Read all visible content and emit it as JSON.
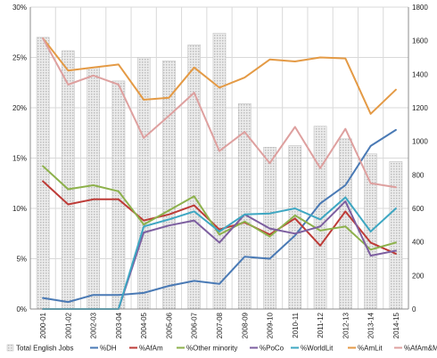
{
  "chart_data": {
    "type": "bar+line",
    "title": "",
    "categories": [
      "2000-01",
      "2001-02",
      "2002-03",
      "2003-04",
      "2004-05",
      "2005-06",
      "2006-07",
      "2007-08",
      "2008-09",
      "2009-10",
      "2010-11",
      "2011-12",
      "2012-13",
      "2013-14",
      "2014-15"
    ],
    "bar_series": {
      "name": "Total English Jobs",
      "axis": "right",
      "color": "#cfcfcf",
      "values": [
        1620,
        1540,
        1440,
        1360,
        1500,
        1480,
        1575,
        1645,
        1225,
        965,
        975,
        1090,
        1015,
        925,
        880
      ]
    },
    "line_series": [
      {
        "name": "%DH",
        "color": "#4a7ab5",
        "values": [
          1.1,
          0.7,
          1.4,
          1.4,
          1.6,
          2.3,
          2.8,
          2.5,
          5.2,
          5.0,
          7.3,
          10.5,
          12.3,
          16.2,
          17.8
        ]
      },
      {
        "name": "%AfAm",
        "color": "#bd3b37",
        "values": [
          12.7,
          10.4,
          10.9,
          10.9,
          8.8,
          9.4,
          10.3,
          7.9,
          8.6,
          7.4,
          9.0,
          6.3,
          9.7,
          6.6,
          5.5
        ]
      },
      {
        "name": "%Other minority",
        "color": "#8db14b",
        "values": [
          14.2,
          11.9,
          12.3,
          11.7,
          8.4,
          9.8,
          11.2,
          7.4,
          8.7,
          7.2,
          9.3,
          7.8,
          8.2,
          5.9,
          6.6
        ]
      },
      {
        "name": "%PoCo",
        "color": "#7d5fa0",
        "values": [
          0.0,
          0.0,
          0.0,
          0.0,
          7.6,
          8.3,
          8.8,
          6.6,
          9.4,
          8.0,
          7.5,
          8.2,
          10.7,
          5.3,
          5.8
        ]
      },
      {
        "name": "%WorldLit",
        "color": "#3ea7c2",
        "values": [
          0.0,
          0.0,
          0.0,
          0.0,
          8.2,
          8.9,
          9.7,
          7.7,
          9.4,
          9.5,
          10.0,
          8.9,
          11.1,
          7.7,
          10.0
        ]
      },
      {
        "name": "%AmLit",
        "color": "#e49a45",
        "values": [
          26.9,
          23.7,
          24.0,
          24.3,
          20.8,
          21.0,
          24.0,
          22.0,
          23.0,
          24.8,
          24.6,
          25.0,
          24.9,
          19.4,
          21.8
        ]
      },
      {
        "name": "%AfAm&Minority",
        "color": "#dea09f",
        "values": [
          26.9,
          22.3,
          23.2,
          22.3,
          17.0,
          19.2,
          21.5,
          15.7,
          17.6,
          14.5,
          18.1,
          14.0,
          17.9,
          12.5,
          12.1
        ]
      }
    ],
    "y_left": {
      "min": 0,
      "max": 30,
      "ticks": [
        "0%",
        "5%",
        "10%",
        "15%",
        "20%",
        "25%",
        "30%"
      ]
    },
    "y_right": {
      "min": 0,
      "max": 1800,
      "ticks": [
        "0",
        "200",
        "400",
        "600",
        "800",
        "1000",
        "1200",
        "1400",
        "1600",
        "1800"
      ]
    },
    "grid": true,
    "legend_position": "bottom"
  }
}
